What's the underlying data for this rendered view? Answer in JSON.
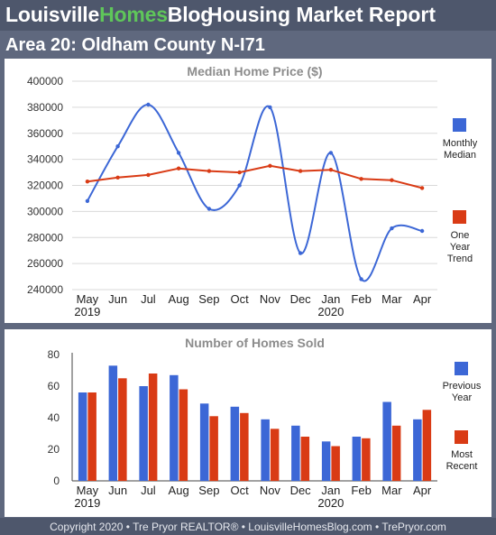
{
  "header": {
    "brand_part1": "Louisville",
    "brand_part2": "Homes",
    "brand_part3": "Blog",
    "report_title": "Housing Market Report",
    "area_title": "Area 20: Oldham County N-I71"
  },
  "footer": {
    "copyright": "Copyright 2020 • Tre Pryor REALTOR® • LouisvilleHomesBlog.com • TrePryor.com"
  },
  "colors": {
    "blue": "#3c67d6",
    "red": "#d93b15",
    "grid": "#d9d9d9",
    "title": "#8c8c8c"
  },
  "chart_data": [
    {
      "type": "line",
      "title": "Median Home Price ($)",
      "categories": [
        "May",
        "Jun",
        "Jul",
        "Aug",
        "Sep",
        "Oct",
        "Nov",
        "Dec",
        "Jan",
        "Feb",
        "Mar",
        "Apr"
      ],
      "year_labels": [
        "2019",
        "",
        "",
        "",
        "",
        "",
        "",
        "",
        "2020",
        "",
        "",
        ""
      ],
      "y_ticks": [
        240000,
        260000,
        280000,
        300000,
        320000,
        340000,
        360000,
        380000,
        400000
      ],
      "ylim": [
        240000,
        400000
      ],
      "grid": true,
      "legend_position": "right",
      "series": [
        {
          "name": "Monthly Median",
          "legend_lines": [
            "Monthly",
            "Median"
          ],
          "color": "#3c67d6",
          "smooth": true,
          "values": [
            308000,
            350000,
            382000,
            345000,
            302000,
            320000,
            380000,
            268000,
            345000,
            248000,
            287000,
            285000
          ]
        },
        {
          "name": "One Year Trend",
          "legend_lines": [
            "One",
            "Year",
            "Trend"
          ],
          "color": "#d93b15",
          "smooth": false,
          "values": [
            323000,
            326000,
            328000,
            333000,
            331000,
            330000,
            335000,
            331000,
            332000,
            325000,
            324000,
            318000
          ]
        }
      ]
    },
    {
      "type": "bar",
      "title": "Number of Homes Sold",
      "categories": [
        "May",
        "Jun",
        "Jul",
        "Aug",
        "Sep",
        "Oct",
        "Nov",
        "Dec",
        "Jan",
        "Feb",
        "Mar",
        "Apr"
      ],
      "year_labels": [
        "2019",
        "",
        "",
        "",
        "",
        "",
        "",
        "",
        "2020",
        "",
        "",
        ""
      ],
      "y_ticks": [
        0,
        20,
        40,
        60,
        80
      ],
      "ylim": [
        0,
        80
      ],
      "grid": false,
      "legend_position": "right",
      "series": [
        {
          "name": "Previous Year",
          "legend_lines": [
            "Previous",
            "Year"
          ],
          "color": "#3c67d6",
          "values": [
            56,
            73,
            60,
            67,
            49,
            47,
            39,
            35,
            25,
            28,
            50,
            39
          ]
        },
        {
          "name": "Most Recent",
          "legend_lines": [
            "Most",
            "Recent"
          ],
          "color": "#d93b15",
          "values": [
            56,
            65,
            68,
            58,
            41,
            43,
            33,
            28,
            22,
            27,
            35,
            45
          ]
        }
      ]
    }
  ]
}
